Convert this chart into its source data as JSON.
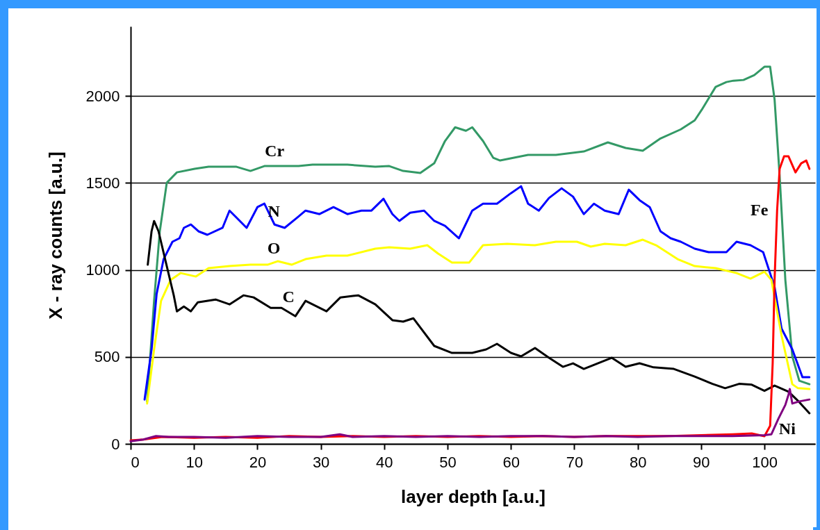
{
  "chart_data": {
    "type": "line",
    "xlabel": "layer depth [a.u.]",
    "ylabel": "X - ray counts [a.u.]",
    "xlim": [
      0,
      108
    ],
    "ylim": [
      0,
      2400
    ],
    "xticks": [
      0,
      10,
      20,
      30,
      40,
      50,
      60,
      70,
      80,
      90,
      100
    ],
    "yticks": [
      0,
      500,
      1000,
      1500,
      2000
    ],
    "grid": "y",
    "legend": false,
    "line_style": "solid",
    "marker": "none",
    "series": [
      {
        "name": "Cr",
        "color": "#339966",
        "x": [
          2.6,
          3.7,
          4.6,
          5.7,
          7.3,
          10.1,
          12.3,
          16.7,
          18.9,
          21.1,
          26.5,
          28.7,
          34.2,
          38.6,
          40.8,
          43,
          45.7,
          47.9,
          49.6,
          51.2,
          52.9,
          53.9,
          55.6,
          57.2,
          58.3,
          60.5,
          62.7,
          67.1,
          71.5,
          75.3,
          78.1,
          80.8,
          83.6,
          86.8,
          89,
          90.1,
          92.3,
          94,
          95.1,
          96.7,
          98.4,
          100,
          100.9,
          101.6,
          102.4,
          103.3,
          104.4,
          105.5,
          107.1
        ],
        "values": [
          243,
          822,
          1222,
          1501,
          1561,
          1581,
          1593,
          1593,
          1569,
          1597,
          1597,
          1605,
          1605,
          1593,
          1597,
          1569,
          1557,
          1613,
          1741,
          1820,
          1800,
          1820,
          1741,
          1645,
          1629,
          1645,
          1661,
          1661,
          1681,
          1733,
          1701,
          1685,
          1756,
          1808,
          1860,
          1920,
          2052,
          2080,
          2088,
          2092,
          2120,
          2168,
          2168,
          1980,
          1541,
          942,
          503,
          363,
          343
        ]
      },
      {
        "name": "N",
        "color": "#0000ff",
        "x": [
          2.2,
          3.3,
          4.1,
          5.2,
          6.6,
          7.7,
          8.4,
          9.5,
          10.7,
          12.1,
          14.5,
          15.6,
          16.7,
          18.3,
          20,
          21.1,
          22.7,
          24.3,
          26.3,
          27.6,
          29.8,
          32,
          34.2,
          36.4,
          38,
          39.9,
          41.3,
          42.4,
          44.1,
          46.3,
          47.9,
          49.6,
          51.8,
          53.9,
          55.6,
          57.8,
          60,
          61.6,
          62.7,
          64.4,
          66,
          68,
          69.8,
          71.5,
          73.1,
          74.8,
          77,
          78.6,
          80.3,
          81.9,
          83.6,
          85.2,
          86.8,
          89,
          91.2,
          94,
          95.6,
          97.8,
          99.8,
          101.6,
          102.7,
          104.4,
          106,
          107.1
        ],
        "values": [
          255,
          543,
          862,
          1062,
          1162,
          1182,
          1242,
          1261,
          1222,
          1202,
          1242,
          1341,
          1301,
          1242,
          1361,
          1381,
          1261,
          1242,
          1301,
          1341,
          1321,
          1361,
          1321,
          1341,
          1341,
          1409,
          1321,
          1282,
          1329,
          1341,
          1282,
          1253,
          1182,
          1341,
          1381,
          1381,
          1441,
          1481,
          1381,
          1341,
          1413,
          1469,
          1421,
          1321,
          1381,
          1341,
          1321,
          1461,
          1401,
          1361,
          1222,
          1182,
          1162,
          1122,
          1102,
          1102,
          1162,
          1142,
          1102,
          902,
          663,
          543,
          383,
          383
        ]
      },
      {
        "name": "O",
        "color": "#ffff00",
        "x": [
          2.6,
          3.7,
          4.8,
          6.3,
          7.9,
          10.3,
          12.3,
          15.6,
          18.9,
          21.6,
          23.2,
          25.4,
          27.6,
          30.9,
          34.2,
          38.6,
          40.8,
          44.1,
          46.8,
          48.5,
          50.7,
          53.4,
          55.6,
          59.4,
          63.8,
          67.1,
          70.4,
          72.6,
          74.8,
          78.1,
          80.8,
          82.9,
          86.3,
          89,
          92.3,
          95.6,
          97.8,
          100,
          101.1,
          102.7,
          104.4,
          105.3,
          107.1
        ],
        "values": [
          232,
          543,
          822,
          942,
          982,
          962,
          1010,
          1022,
          1030,
          1030,
          1050,
          1030,
          1062,
          1082,
          1082,
          1122,
          1130,
          1122,
          1142,
          1094,
          1042,
          1042,
          1142,
          1150,
          1142,
          1162,
          1162,
          1134,
          1150,
          1142,
          1174,
          1142,
          1062,
          1022,
          1010,
          982,
          950,
          990,
          942,
          623,
          343,
          320,
          315
        ]
      },
      {
        "name": "C",
        "color": "#000000",
        "x": [
          2.7,
          3.3,
          3.7,
          4.4,
          5.7,
          6.8,
          7.3,
          8.4,
          9.5,
          10.6,
          13.4,
          15.6,
          17.8,
          19.4,
          22.1,
          23.8,
          26,
          27.6,
          30.9,
          33.1,
          35.9,
          38.6,
          41.3,
          43,
          44.6,
          47.9,
          50.7,
          53.9,
          56.1,
          57.8,
          60,
          61.6,
          63.8,
          66,
          68.2,
          69.8,
          71.5,
          73.7,
          75.9,
          78.1,
          80.3,
          82.5,
          85.7,
          89,
          91.8,
          93.8,
          96,
          98,
          100,
          101.6,
          103.8,
          105.5,
          107.1
        ],
        "values": [
          1030,
          1222,
          1281,
          1222,
          1022,
          854,
          762,
          790,
          762,
          814,
          830,
          802,
          854,
          842,
          782,
          782,
          734,
          822,
          762,
          842,
          854,
          802,
          711,
          703,
          722,
          563,
          523,
          523,
          543,
          575,
          523,
          503,
          551,
          495,
          443,
          463,
          431,
          463,
          495,
          443,
          463,
          440,
          431,
          387,
          345,
          320,
          345,
          340,
          305,
          335,
          300,
          240,
          176
        ]
      },
      {
        "name": "Fe",
        "color": "#ff0000",
        "x": [
          0,
          2,
          5,
          10,
          15,
          20,
          25,
          30,
          35,
          40,
          45,
          50,
          55,
          60,
          65,
          70,
          75,
          80,
          85,
          90,
          95,
          98,
          100,
          100.9,
          101.3,
          101.6,
          102,
          102.4,
          103.1,
          103.8,
          104.9,
          105.8,
          106.6,
          107.1
        ],
        "values": [
          20,
          25,
          40,
          35,
          40,
          35,
          45,
          40,
          45,
          40,
          45,
          40,
          45,
          40,
          45,
          40,
          45,
          45,
          45,
          50,
          55,
          60,
          44,
          104,
          463,
          942,
          1341,
          1581,
          1653,
          1653,
          1561,
          1613,
          1629,
          1581
        ]
      },
      {
        "name": "Ni",
        "color": "#800080",
        "x": [
          0,
          2,
          4,
          6,
          10,
          15,
          20,
          25,
          30,
          33,
          35,
          40,
          45,
          50,
          55,
          60,
          65,
          70,
          75,
          80,
          85,
          90,
          95,
          100,
          101.1,
          102.2,
          103.3,
          103.8,
          104,
          104.4,
          105.5,
          107.1
        ],
        "values": [
          15,
          25,
          45,
          40,
          40,
          35,
          45,
          40,
          40,
          55,
          40,
          45,
          40,
          45,
          40,
          45,
          45,
          40,
          45,
          40,
          45,
          45,
          45,
          50,
          55,
          144,
          224,
          283,
          315,
          232,
          244,
          255
        ]
      }
    ]
  }
}
